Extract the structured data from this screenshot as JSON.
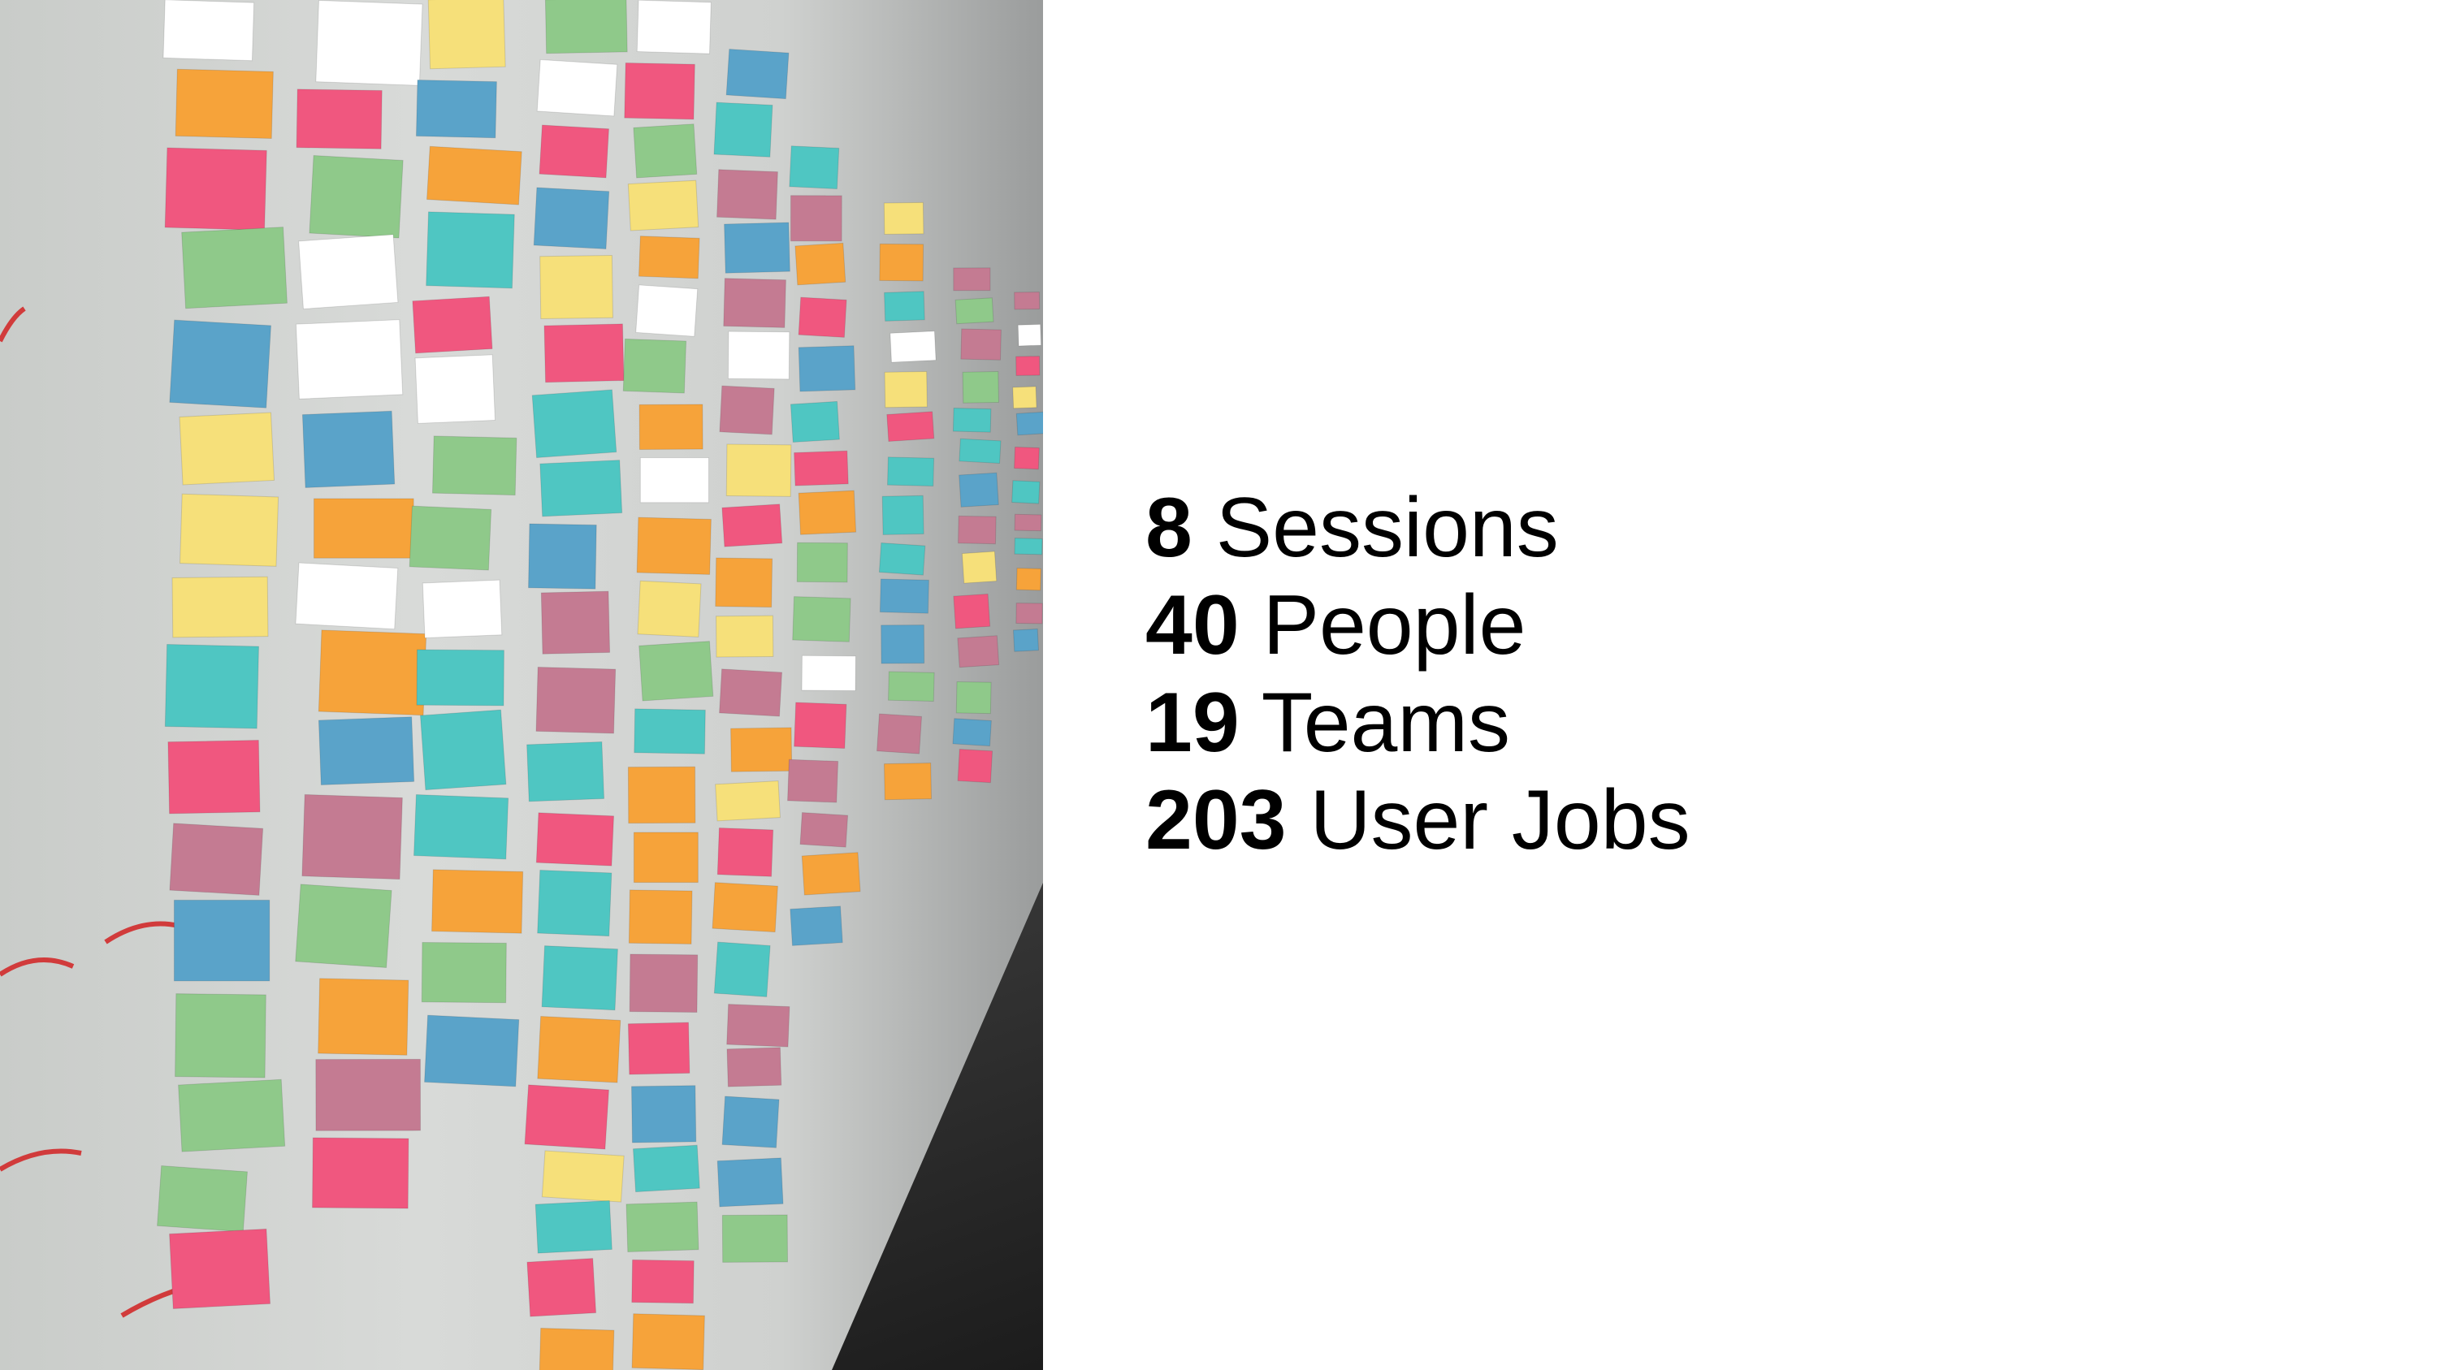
{
  "photo": {
    "icon": "sticky-note-wall-photo",
    "colors": [
      "#4fc6c2",
      "#f0577f",
      "#f6e07a",
      "#8fc98a",
      "#c47b92",
      "#5aa3c9",
      "#f6a33a",
      "#ffffff"
    ]
  },
  "stats": [
    {
      "number": "8",
      "label": "Sessions"
    },
    {
      "number": "40",
      "label": "People"
    },
    {
      "number": "19",
      "label": "Teams"
    },
    {
      "number": "203",
      "label": "User Jobs"
    }
  ]
}
